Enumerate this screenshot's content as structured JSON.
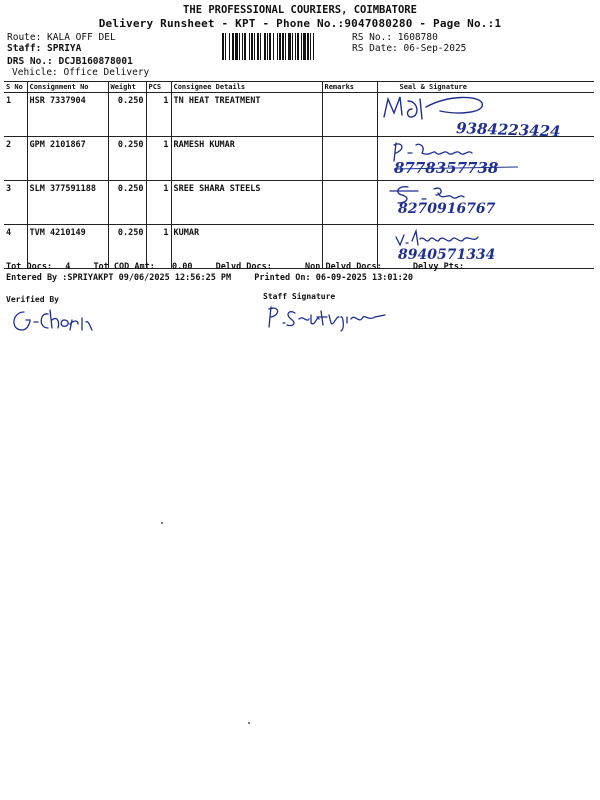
{
  "header": {
    "title": "THE PROFESSIONAL COURIERS, COIMBATORE",
    "subtitle": "Delivery Runsheet - KPT - Phone No.:9047080280 - Page No.:1"
  },
  "meta": {
    "route": "Route: KALA OFF DEL",
    "staff": "Staff: SPRIYA",
    "drs": "DRS No.: DCJB160878001",
    "vehicle": "Vehicle: Office Delivery",
    "rs_no": "RS No.: 1608780",
    "rs_date": "RS Date: 06-Sep-2025"
  },
  "table": {
    "headers": [
      "S No",
      "Consignment No",
      "Weight",
      "PCS",
      "Consignee Details",
      "Remarks",
      "Seal & Signature"
    ],
    "rows": [
      {
        "sno": "1",
        "consignment": "HSR 7337904",
        "weight": "0.250",
        "pcs": "1",
        "consignee": "TN HEAT TREATMENT",
        "remarks": "",
        "handwriting": "9384223424"
      },
      {
        "sno": "2",
        "consignment": "GPM 2101867",
        "weight": "0.250",
        "pcs": "1",
        "consignee": "RAMESH KUMAR",
        "remarks": "",
        "handwriting": "8778357738"
      },
      {
        "sno": "3",
        "consignment": "SLM 377591188",
        "weight": "0.250",
        "pcs": "1",
        "consignee": "SREE SHARA STEELS",
        "remarks": "",
        "handwriting": "8270916767"
      },
      {
        "sno": "4",
        "consignment": "TVM 4210149",
        "weight": "0.250",
        "pcs": "1",
        "consignee": "KUMAR",
        "remarks": "",
        "handwriting": "8940571334"
      }
    ]
  },
  "totals": {
    "tot_docs_label": "Tot Docs:",
    "tot_docs_value": "4",
    "tot_cod_label": "Tot COD Amt:",
    "tot_cod_value": "0.00",
    "delvd_docs_label": "Delvd Docs:",
    "non_delvd_label": "Non Delvd Docs:",
    "delvy_pts_label": "Delvy Pts:"
  },
  "entered": {
    "entered_by": "Entered By :SPRIYAKPT 09/06/2025 12:56:25 PM",
    "printed_on": "Printed On: 06-09-2025 13:01:20"
  },
  "footer": {
    "verified_by": "Verified By",
    "staff_signature": "Staff Signature"
  },
  "colors": {
    "ink": "#111111",
    "pen": "#1f2f8f"
  }
}
